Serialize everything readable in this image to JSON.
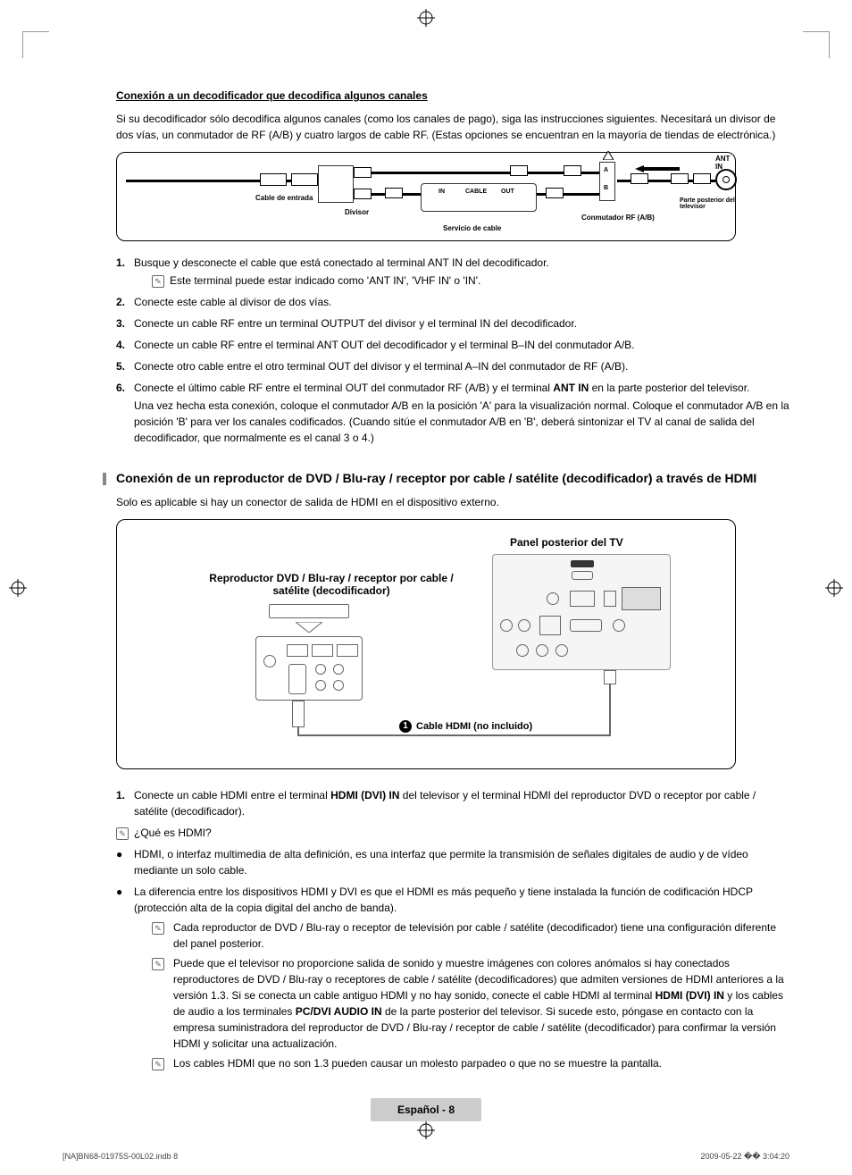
{
  "section1": {
    "heading": "Conexión a un decodificador que decodifica algunos canales",
    "intro": "Si su decodificador sólo decodifica algunos canales (como los canales de pago), siga las instrucciones siguientes. Necesitará un divisor de dos vías, un conmutador de RF (A/B) y cuatro largos de cable RF. (Estas opciones se encuentran en la mayoría de tiendas de electrónica.)",
    "diagram": {
      "cable_entrada": "Cable de entrada",
      "divisor": "Divisor",
      "servicio_cable": "Servicio de cable",
      "conmutador": "Conmutador RF (A/B)",
      "ant_in": "ANT IN",
      "parte_posterior": "Parte posterior del televisor",
      "in": "IN",
      "cable": "CABLE",
      "out": "OUT",
      "a": "A",
      "b": "B"
    },
    "steps": [
      {
        "num": "1.",
        "text": "Busque y desconecte el cable que está conectado al terminal ANT IN del decodificador.",
        "note": "Este terminal puede estar indicado como 'ANT IN', 'VHF IN' o 'IN'."
      },
      {
        "num": "2.",
        "text": "Conecte este cable al divisor de dos vías."
      },
      {
        "num": "3.",
        "text": "Conecte un cable RF entre un terminal OUTPUT del divisor y el terminal IN del decodificador."
      },
      {
        "num": "4.",
        "text": "Conecte un cable RF entre el terminal ANT OUT del decodificador y el terminal B–IN del conmutador A/B."
      },
      {
        "num": "5.",
        "text": "Conecte otro cable entre el otro terminal OUT del divisor y el terminal A–IN del conmutador de RF (A/B)."
      },
      {
        "num": "6.",
        "text_pre": "Conecte el último cable RF entre el terminal OUT del conmutador RF (A/B) y el terminal ",
        "text_bold": "ANT IN",
        "text_post": " en la parte posterior del televisor.",
        "extra": "Una vez hecha esta conexión, coloque el conmutador A/B en la posición 'A' para la visualización normal. Coloque el conmutador A/B en la posición 'B' para ver los canales codificados. (Cuando sitúe el conmutador A/B en 'B', deberá sintonizar el TV al canal de salida del decodificador, que normalmente es el canal 3 o 4.)"
      }
    ]
  },
  "section2": {
    "heading": "Conexión de un reproductor de DVD / Blu-ray / receptor por cable / satélite (decodificador) a través de HDMI",
    "subtext": "Solo es aplicable si hay un conector de salida de HDMI en el dispositivo externo.",
    "diagram": {
      "panel_tv": "Panel posterior del TV",
      "reproductor": "Reproductor DVD / Blu-ray / receptor por cable / satélite (decodificador)",
      "cable_hdmi": "Cable HDMI (no incluido)",
      "num1": "1"
    },
    "body": [
      {
        "type": "numstep",
        "num": "1.",
        "pre": "Conecte un cable HDMI entre el terminal ",
        "b1": "HDMI (DVI) IN",
        "mid": " del televisor y el terminal HDMI del reproductor DVD o receptor por cable / satélite (decodificador)."
      },
      {
        "type": "noteq",
        "text": "¿Qué es HDMI?"
      },
      {
        "type": "bullet",
        "text": "HDMI, o interfaz multimedia de alta definición, es una interfaz que permite la transmisión de señales digitales de audio y de vídeo mediante un solo cable."
      },
      {
        "type": "bullet",
        "text": "La diferencia entre los dispositivos HDMI y DVI es que el HDMI es más pequeño y tiene instalada la función de codificación HDCP (protección alta de la copia digital del ancho de banda).",
        "notes": [
          "Cada reproductor de DVD / Blu-ray o receptor de televisión por cable / satélite (decodificador) tiene una configuración diferente del panel posterior.",
          {
            "pre": "Puede que el televisor no proporcione salida de sonido y muestre imágenes con colores anómalos si hay conectados reproductores de DVD / Blu-ray o receptores de cable / satélite (decodificadores) que admiten versiones de HDMI anteriores a la versión 1.3. Si se conecta un cable antiguo HDMI y no hay sonido, conecte el cable HDMI al terminal ",
            "b1": "HDMI (DVI) IN",
            "mid": " y los cables de audio a los terminales ",
            "b2": "PC/DVI AUDIO IN",
            "post": " de la parte posterior del televisor. Si sucede esto, póngase en contacto con la empresa suministradora del reproductor de DVD / Blu-ray / receptor de cable / satélite (decodificador) para confirmar la versión HDMI y solicitar una actualización."
          },
          "Los cables HDMI que no son 1.3 pueden causar un molesto parpadeo o que no se muestre la pantalla."
        ]
      }
    ]
  },
  "footer": {
    "page": "Español - 8",
    "doc_left": "[NA]BN68-01975S-00L02.indb   8",
    "doc_right": "2009-05-22   �� 3:04:20"
  }
}
